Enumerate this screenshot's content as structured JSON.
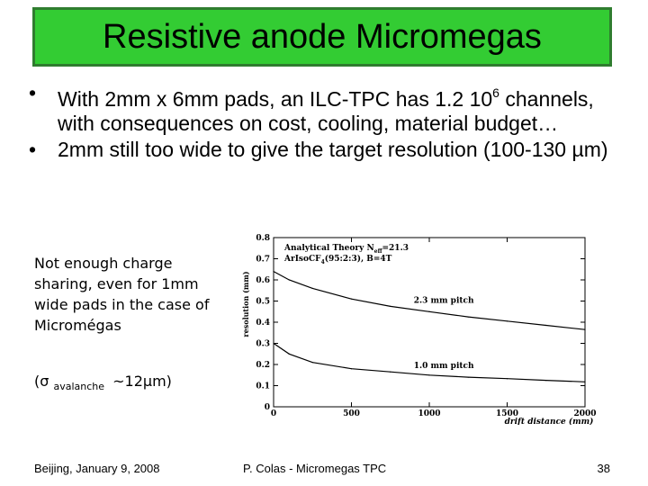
{
  "slide": {
    "title": "Resistive anode Micromegas",
    "bullets": [
      {
        "text": "With 2mm x 6mm pads, an ILC-TPC has 1.2 10",
        "sup": "6",
        "text2": " channels, with consequences on cost, cooling, material budget…"
      },
      {
        "text": "2mm still too wide to give the target resolution (100-130 µm)"
      }
    ],
    "side_note": "Not enough charge sharing, even for 1mm wide pads in the case of Micromégas",
    "sigma_note": {
      "symbol": "(σ",
      "sub": "avalanche",
      "value": "~12µm)"
    },
    "footer": {
      "left": "Beijing, January 9, 2008",
      "center": "P. Colas - Micromegas TPC",
      "right": "38"
    },
    "colors": {
      "title_bg": "#33cc33",
      "title_border": "#2f7d2f"
    }
  },
  "chart_data": {
    "type": "line",
    "xlabel": "drift distance (mm)",
    "ylabel": "resolution (mm)",
    "xlim": [
      0,
      2000
    ],
    "ylim": [
      0,
      0.8
    ],
    "x_ticks": [
      0,
      500,
      1000,
      1500,
      2000
    ],
    "y_ticks": [
      0,
      0.1,
      0.2,
      0.3,
      0.4,
      0.5,
      0.6,
      0.7,
      0.8
    ],
    "legend_lines": [
      "Analytical Theory N",
      "eff",
      "=21.3",
      "ArIsoCF",
      "4",
      "(95:2:3), B=4T"
    ],
    "series": [
      {
        "name": "2.3 mm pitch",
        "x": [
          0,
          100,
          250,
          500,
          750,
          1000,
          1250,
          1500,
          1750,
          2000
        ],
        "values": [
          0.64,
          0.6,
          0.56,
          0.51,
          0.475,
          0.45,
          0.425,
          0.405,
          0.385,
          0.365
        ]
      },
      {
        "name": "1.0 mm pitch",
        "x": [
          0,
          100,
          250,
          500,
          750,
          1000,
          1250,
          1500,
          1750,
          2000
        ],
        "values": [
          0.3,
          0.25,
          0.21,
          0.18,
          0.165,
          0.15,
          0.14,
          0.133,
          0.125,
          0.118
        ]
      }
    ],
    "grid": false
  }
}
